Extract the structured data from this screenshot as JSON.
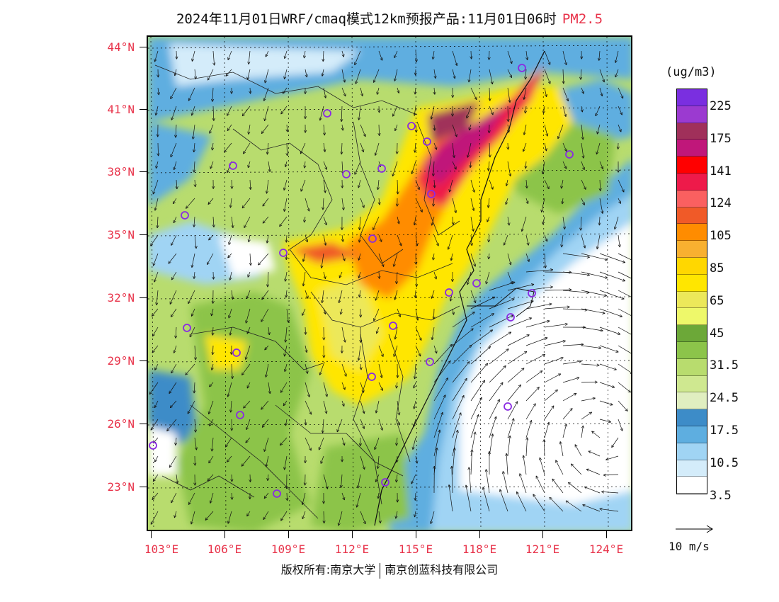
{
  "title": {
    "main": "2024年11月01日WRF/cmaq模式12km预报产品:11月01日06时",
    "species": "PM2.5"
  },
  "axes": {
    "lat_labels": [
      "44°N",
      "41°N",
      "38°N",
      "35°N",
      "32°N",
      "29°N",
      "26°N",
      "23°N"
    ],
    "lon_labels": [
      "103°E",
      "106°E",
      "109°E",
      "112°E",
      "115°E",
      "118°E",
      "121°E",
      "124°E"
    ]
  },
  "colorbar": {
    "units": "(ug/m3)",
    "labels": [
      "225",
      "175",
      "141",
      "124",
      "105",
      "85",
      "65",
      "45",
      "31.5",
      "24.5",
      "17.5",
      "10.5",
      "3.5"
    ],
    "colors": [
      "#7a2fe0",
      "#9b3ad0",
      "#a0305a",
      "#c0177a",
      "#ff0000",
      "#ee1a4a",
      "#fa6060",
      "#f05a28",
      "#ff8c00",
      "#f8b030",
      "#ffd700",
      "#ffe600",
      "#ece85a",
      "#eef86a",
      "#6ca838",
      "#8cc44a",
      "#b8dc6e",
      "#cfe890",
      "#e0eec0",
      "#3d8cc8",
      "#5eaee0",
      "#a0d4f4",
      "#d4ecfa",
      "#ffffff"
    ]
  },
  "vector_scale": {
    "label": "10 m/s"
  },
  "footer": {
    "owner_prefix": "版权所有:",
    "owner_1": "南京大学",
    "owner_2": "南京创蓝科技有限公司"
  }
}
